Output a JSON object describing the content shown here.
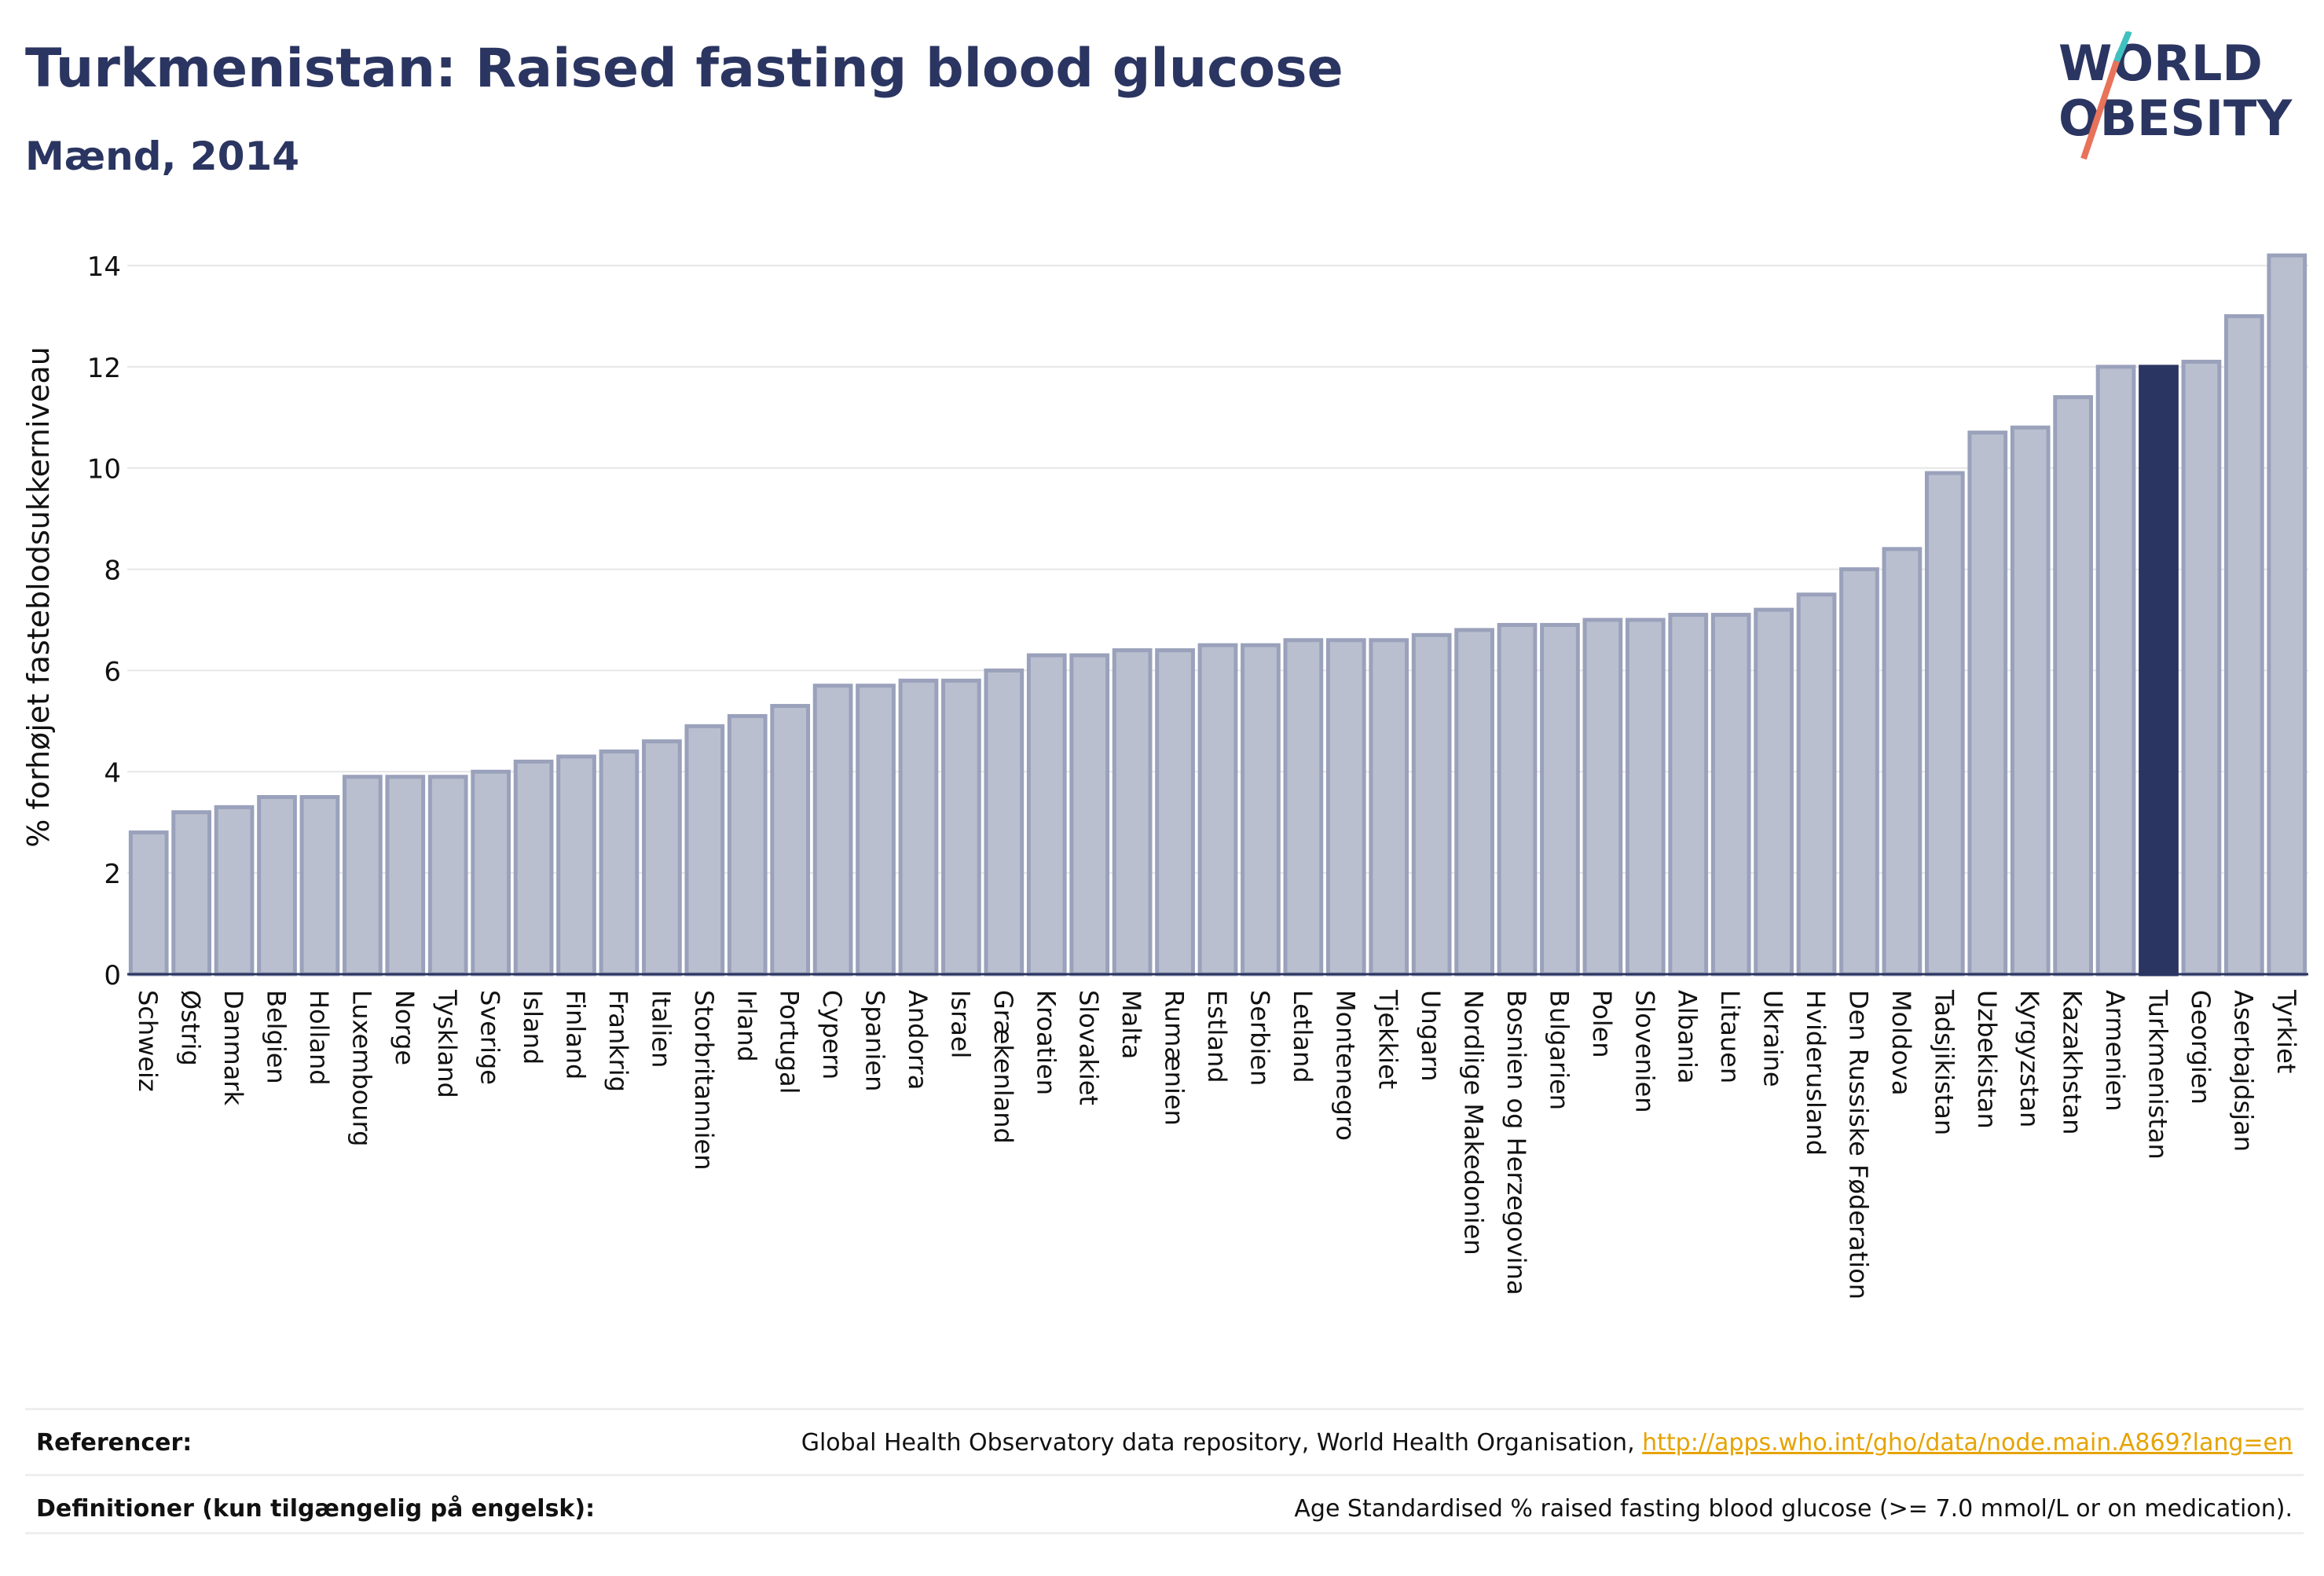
{
  "header": {
    "title": "Turkmenistan: Raised fasting blood glucose",
    "subtitle": "Mænd, 2014"
  },
  "logo": {
    "line1": "WORLD",
    "line2": "OBESITY"
  },
  "colors": {
    "primary": "#2b3561",
    "bar_fill": "#babfcf",
    "bar_stroke": "#9aa1bb",
    "link": "#e6a300"
  },
  "footer": {
    "references_label": "Referencer:",
    "references_text": "Global Health Observatory data repository, World Health Organisation, ",
    "references_link": "http://apps.who.int/gho/data/node.main.A869?lang=en",
    "definitions_label": "Definitioner (kun tilgængelig på engelsk):",
    "definitions_text": "Age Standardised % raised fasting blood glucose (>= 7.0 mmol/L or on medication)."
  },
  "chart_data": {
    "type": "bar",
    "ylabel": "% forhøjet fasteblodsukkerniveau",
    "ylim": [
      0,
      14.4
    ],
    "yticks": [
      0,
      2,
      4,
      6,
      8,
      10,
      12,
      14
    ],
    "grid": true,
    "highlight": "Turkmenistan",
    "categories": [
      "Schweiz",
      "Østrig",
      "Danmark",
      "Belgien",
      "Holland",
      "Luxembourg",
      "Norge",
      "Tyskland",
      "Sverige",
      "Island",
      "Finland",
      "Frankrig",
      "Italien",
      "Storbritannien",
      "Irland",
      "Portugal",
      "Cypern",
      "Spanien",
      "Andorra",
      "Israel",
      "Grækenland",
      "Kroatien",
      "Slovakiet",
      "Malta",
      "Rumænien",
      "Estland",
      "Serbien",
      "Letland",
      "Montenegro",
      "Tjekkiet",
      "Ungarn",
      "Nordlige Makedonien",
      "Bosnien og Herzegovina",
      "Bulgarien",
      "Polen",
      "Slovenien",
      "Albania",
      "Litauen",
      "Ukraine",
      "Hviderusland",
      "Den Russiske Føderation",
      "Moldova",
      "Tadsjikistan",
      "Uzbekistan",
      "Kyrgyzstan",
      "Kazakhstan",
      "Armenien",
      "Turkmenistan",
      "Georgien",
      "Aserbajdsjan",
      "Tyrkiet"
    ],
    "values": [
      2.8,
      3.2,
      3.3,
      3.5,
      3.5,
      3.9,
      3.9,
      3.9,
      4.0,
      4.2,
      4.3,
      4.4,
      4.6,
      4.9,
      5.1,
      5.3,
      5.7,
      5.7,
      5.8,
      5.8,
      6.0,
      6.3,
      6.3,
      6.4,
      6.4,
      6.5,
      6.5,
      6.6,
      6.6,
      6.6,
      6.7,
      6.8,
      6.9,
      6.9,
      7.0,
      7.0,
      7.1,
      7.1,
      7.2,
      7.5,
      8.0,
      8.4,
      9.9,
      10.7,
      10.8,
      11.4,
      12.0,
      12.0,
      12.1,
      13.0,
      14.2
    ]
  }
}
